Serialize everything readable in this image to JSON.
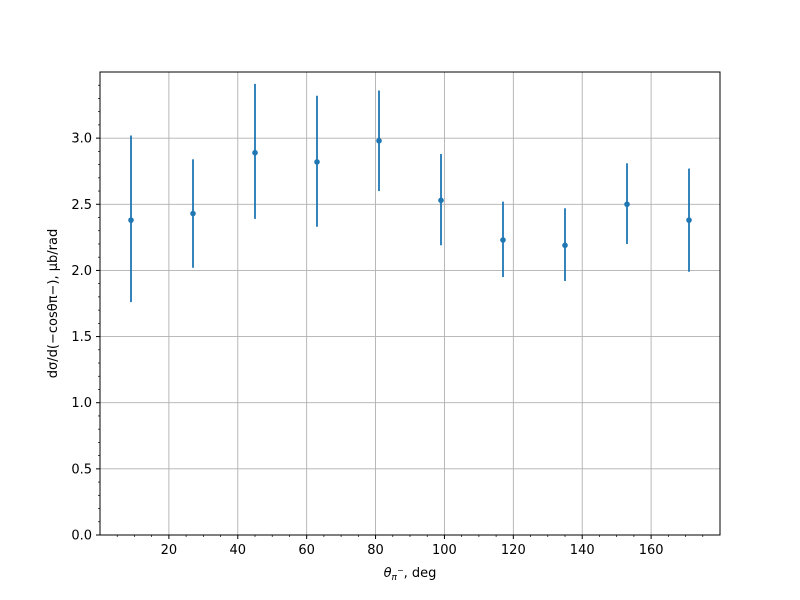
{
  "chart_data": {
    "type": "scatter",
    "title": "",
    "xlabel_symbol": "θ",
    "xlabel_subscript": "π",
    "xlabel_superscript": "−",
    "xlabel_suffix": ", deg",
    "ylabel": "dσ/d(−cosθπ−), μb/rad",
    "xlim": [
      0,
      180
    ],
    "ylim": [
      0,
      3.5
    ],
    "grid": true,
    "marker_color": "#1f77b4",
    "x_ticks": [
      20,
      40,
      60,
      80,
      100,
      120,
      140,
      160
    ],
    "x_tick_labels": [
      "20",
      "40",
      "60",
      "80",
      "100",
      "120",
      "140",
      "160"
    ],
    "y_ticks": [
      0.0,
      0.5,
      1.0,
      1.5,
      2.0,
      2.5,
      3.0
    ],
    "y_tick_labels": [
      "0.0",
      "0.5",
      "1.0",
      "1.5",
      "2.0",
      "2.5",
      "3.0"
    ],
    "series": [
      {
        "x": [
          9,
          27,
          45,
          63,
          81,
          99,
          117,
          135,
          153,
          171
        ],
        "y": [
          2.38,
          2.43,
          2.89,
          2.82,
          2.98,
          2.53,
          2.23,
          2.19,
          2.5,
          2.38
        ],
        "yerr_low": [
          0.62,
          0.41,
          0.5,
          0.49,
          0.38,
          0.34,
          0.28,
          0.27,
          0.3,
          0.39
        ],
        "yerr_high": [
          0.64,
          0.41,
          0.52,
          0.5,
          0.38,
          0.35,
          0.29,
          0.28,
          0.31,
          0.39
        ]
      }
    ]
  }
}
